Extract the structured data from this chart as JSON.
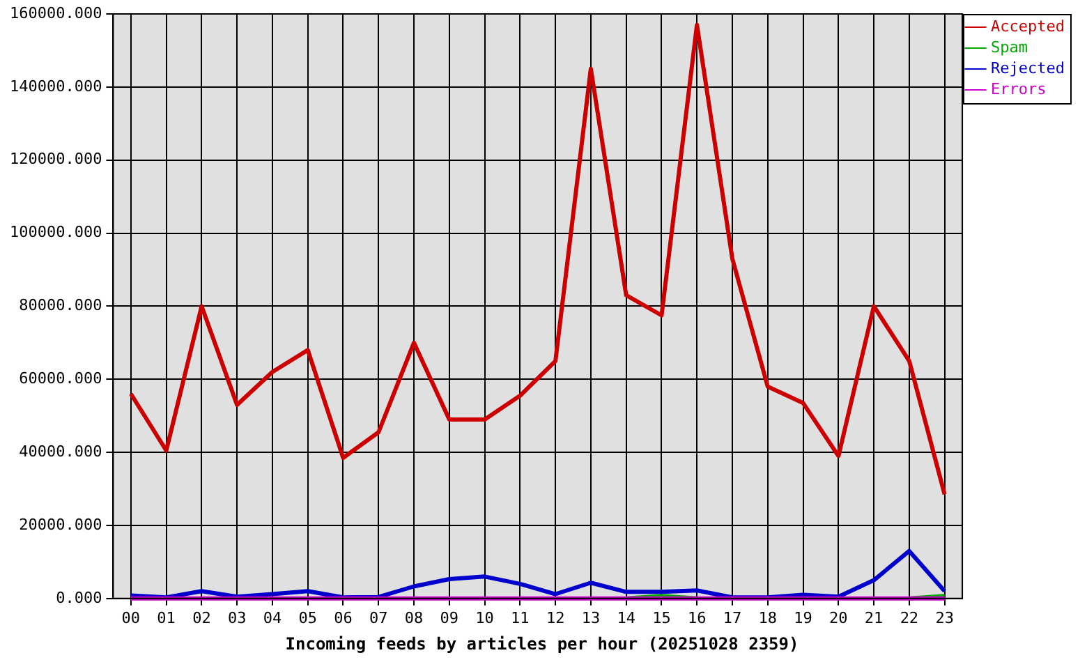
{
  "chart_data": {
    "type": "line",
    "title": "Incoming feeds by articles per hour (20251028 2359)",
    "categories": [
      "00",
      "01",
      "02",
      "03",
      "04",
      "05",
      "06",
      "07",
      "08",
      "09",
      "10",
      "11",
      "12",
      "13",
      "14",
      "15",
      "16",
      "17",
      "18",
      "19",
      "20",
      "21",
      "22",
      "23"
    ],
    "series": [
      {
        "name": "Accepted",
        "color": "#cc0000",
        "values": [
          56000,
          40500,
          80000,
          53000,
          62000,
          68000,
          38500,
          45500,
          70000,
          49000,
          49000,
          55500,
          65000,
          145000,
          83000,
          77500,
          157000,
          93000,
          58000,
          53500,
          39000,
          80000,
          65000,
          28500
        ]
      },
      {
        "name": "Spam",
        "color": "#00aa00",
        "values": [
          null,
          null,
          null,
          null,
          null,
          null,
          null,
          null,
          null,
          null,
          null,
          null,
          null,
          null,
          0,
          700,
          0,
          null,
          null,
          null,
          null,
          null,
          0,
          700
        ]
      },
      {
        "name": "Rejected",
        "color": "#0000cc",
        "values": [
          800,
          300,
          2000,
          500,
          1200,
          2000,
          300,
          400,
          3300,
          5300,
          6000,
          4000,
          1200,
          4300,
          1800,
          1800,
          2200,
          300,
          300,
          1000,
          500,
          5000,
          13000,
          2000
        ]
      },
      {
        "name": "Errors",
        "color": "#cc00cc",
        "values": [
          0,
          0,
          0,
          0,
          0,
          0,
          0,
          0,
          0,
          0,
          0,
          0,
          0,
          0,
          0,
          0,
          0,
          0,
          0,
          0,
          0,
          0,
          0,
          0
        ]
      }
    ],
    "ylim": [
      0,
      160000
    ],
    "yticks": [
      {
        "value": 0,
        "label": "0.000"
      },
      {
        "value": 20000,
        "label": "20000.000"
      },
      {
        "value": 40000,
        "label": "40000.000"
      },
      {
        "value": 60000,
        "label": "60000.000"
      },
      {
        "value": 80000,
        "label": "80000.000"
      },
      {
        "value": 100000,
        "label": "100000.000"
      },
      {
        "value": 120000,
        "label": "120000.000"
      },
      {
        "value": 140000,
        "label": "140000.000"
      },
      {
        "value": 160000,
        "label": "160000.000"
      }
    ],
    "grid": true,
    "legend": "top right",
    "marker": "none",
    "line_style": "solid"
  }
}
